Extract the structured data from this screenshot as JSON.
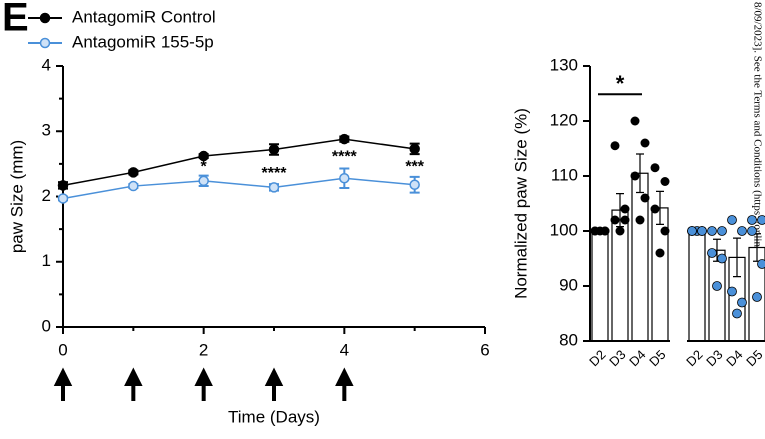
{
  "panel_label": "E",
  "watermark": "8/09/2023]. See the Terms and Conditions (https://onlinelibrary.wiley.co",
  "chart_data": [
    {
      "type": "line",
      "xlabel": "Time (Days)",
      "ylabel": "paw Size (mm)",
      "x": [
        0,
        1,
        2,
        3,
        4,
        5
      ],
      "xlim": [
        0,
        6
      ],
      "xticks": [
        0,
        2,
        4,
        6
      ],
      "ylim": [
        0,
        4
      ],
      "yticks": [
        0,
        1,
        2,
        3,
        4
      ],
      "series": [
        {
          "name": "AntagomiR Control",
          "color": "#000000",
          "values": [
            2.17,
            2.37,
            2.62,
            2.72,
            2.88,
            2.73
          ],
          "errors": [
            0.05,
            0.03,
            0.03,
            0.08,
            0.04,
            0.08
          ]
        },
        {
          "name": "AntagomiR 155-5p",
          "color": "#4a90d9",
          "values": [
            1.97,
            2.16,
            2.24,
            2.14,
            2.28,
            2.18
          ],
          "errors": [
            0.03,
            0.03,
            0.08,
            0.05,
            0.15,
            0.12
          ]
        }
      ],
      "annotations": [
        {
          "text": "*",
          "x": 2,
          "y": 2.45
        },
        {
          "text": "****",
          "x": 3,
          "y": 2.35
        },
        {
          "text": "****",
          "x": 4,
          "y": 2.6
        },
        {
          "text": "***",
          "x": 5,
          "y": 2.45
        }
      ],
      "injection_days": [
        0,
        1,
        2,
        3,
        4
      ]
    },
    {
      "type": "bar",
      "ylabel": "Normalized paw Size (%)",
      "categories": [
        "D2",
        "D3",
        "D4",
        "D5"
      ],
      "ylim": [
        80,
        130
      ],
      "yticks": [
        80,
        90,
        100,
        110,
        120,
        130
      ],
      "series": [
        {
          "color": "#000000",
          "values": [
            100,
            103.8,
            110.5,
            104.2
          ],
          "errors": [
            0.3,
            3,
            3.5,
            3
          ],
          "points": [
            [
              100,
              100,
              100,
              100,
              100
            ],
            [
              100,
              102,
              102,
              104,
              115.5
            ],
            [
              102,
              106,
              110,
              116,
              120
            ],
            [
              96,
              100,
              104,
              109,
              111.5
            ]
          ]
        },
        {
          "color": "#4a90d9",
          "values": [
            100,
            96.5,
            95.2,
            97
          ],
          "errors": [
            0.3,
            2,
            3.5,
            2.5
          ],
          "points": [
            [
              100,
              100,
              100,
              100,
              100
            ],
            [
              90,
              95,
              96,
              100,
              100
            ],
            [
              85,
              87,
              89,
              100,
              102
            ],
            [
              88,
              94,
              100,
              102,
              102
            ]
          ]
        }
      ],
      "annotations": [
        {
          "text": "*",
          "y": 126.5
        }
      ]
    }
  ]
}
